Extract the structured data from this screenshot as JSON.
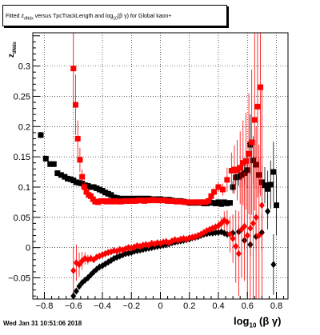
{
  "title": {
    "pre": "Fitted z",
    "sub": "dNdx",
    "mid": " versus TpcTrackLength and log",
    "sub2": "10",
    "post": "(β γ) for Global kaon+"
  },
  "footer": "Wed Jan 31 10:51:06 2018",
  "xlabel": {
    "base": "log",
    "sub": "10",
    "rest": "(β γ)"
  },
  "ylabel": {
    "base": "z",
    "sub": "dNdx"
  },
  "chart_data": {
    "type": "scatter",
    "grid": true,
    "xlim": [
      -0.88,
      0.88
    ],
    "ylim": [
      -0.085,
      0.355
    ],
    "xticks": [
      -0.8,
      -0.6,
      -0.4,
      -0.2,
      0,
      0.2,
      0.4,
      0.6,
      0.8
    ],
    "xtick_labels": [
      "−0.8",
      "−0.6",
      "−0.4",
      "−0.2",
      "0",
      "0.2",
      "0.4",
      "0.6",
      "0.8"
    ],
    "yticks": [
      -0.05,
      0,
      0.05,
      0.1,
      0.15,
      0.2,
      0.25,
      0.3
    ],
    "ytick_labels": [
      "−0.05",
      "0",
      "0.05",
      "0.1",
      "0.15",
      "0.2",
      "0.25",
      "0.3"
    ],
    "series": [
      {
        "color": "#000000",
        "marker": "square",
        "x": [
          -0.825,
          -0.79,
          -0.76,
          -0.735,
          -0.71,
          -0.685,
          -0.66,
          -0.64,
          -0.62,
          -0.6,
          -0.58,
          -0.56,
          -0.54,
          -0.52,
          -0.5,
          -0.48,
          -0.46,
          -0.44,
          -0.42,
          -0.4,
          -0.38,
          -0.36,
          -0.34,
          -0.32,
          -0.3,
          -0.28,
          -0.26,
          -0.24,
          -0.22,
          -0.2,
          -0.18,
          -0.16,
          -0.14,
          -0.12,
          -0.1,
          -0.08,
          -0.06,
          -0.04,
          -0.02,
          0,
          0.02,
          0.04,
          0.06,
          0.08,
          0.1,
          0.12,
          0.14,
          0.16,
          0.18,
          0.2,
          0.22,
          0.24,
          0.26,
          0.28,
          0.3,
          0.32,
          0.34,
          0.36,
          0.38,
          0.4,
          0.42,
          0.44,
          0.46,
          0.48,
          0.5,
          0.52,
          0.54,
          0.56,
          0.58,
          0.6,
          0.62,
          0.64,
          0.66,
          0.68,
          0.7,
          0.72,
          0.74,
          0.76,
          0.78,
          0.8
        ],
        "y": [
          0.186,
          0.147,
          0.138,
          0.138,
          0.123,
          0.12,
          0.117,
          0.114,
          0.113,
          0.111,
          0.108,
          0.107,
          0.106,
          0.103,
          0.102,
          0.1,
          0.1,
          0.098,
          0.096,
          0.094,
          0.091,
          0.089,
          0.087,
          0.083,
          0.082,
          0.081,
          0.081,
          0.081,
          0.081,
          0.081,
          0.081,
          0.081,
          0.081,
          0.081,
          0.081,
          0.081,
          0.08,
          0.08,
          0.08,
          0.08,
          0.079,
          0.079,
          0.079,
          0.078,
          0.077,
          0.077,
          0.077,
          0.076,
          0.075,
          0.074,
          0.074,
          0.074,
          0.074,
          0.075,
          0.073,
          0.073,
          0.075,
          0.074,
          0.073,
          0.075,
          0.072,
          0.075,
          0.073,
          0.074,
          0.1,
          0.116,
          0.117,
          0.12,
          0.123,
          0.128,
          0.17,
          0.144,
          0.137,
          0.12,
          0.108,
          0.103,
          0.097,
          0.104,
          0.125,
          0.07
        ],
        "yerr": [
          0.005,
          0.005,
          0.004,
          0.004,
          0.003,
          0.003,
          0.003,
          0.003,
          0.003,
          0.003,
          0.002,
          0.002,
          0.002,
          0.002,
          0.002,
          0.002,
          0.002,
          0.002,
          0.002,
          0.002,
          0.002,
          0.002,
          0.002,
          0.002,
          0.002,
          0.002,
          0.002,
          0.002,
          0.002,
          0.002,
          0.002,
          0.002,
          0.002,
          0.002,
          0.002,
          0.002,
          0.002,
          0.002,
          0.002,
          0.002,
          0.002,
          0.002,
          0.002,
          0.002,
          0.002,
          0.002,
          0.002,
          0.002,
          0.002,
          0.002,
          0.002,
          0.002,
          0.002,
          0.002,
          0.002,
          0.002,
          0.002,
          0.002,
          0.002,
          0.002,
          0.002,
          0.002,
          0.002,
          0.002,
          0.01,
          0.012,
          0.015,
          0.02,
          0.02,
          0.03,
          0.05,
          0.04,
          0.04,
          0.03,
          0.03,
          0.03,
          0.03,
          0.04,
          0.05,
          0.05
        ]
      },
      {
        "color": "#000000",
        "marker": "diamond",
        "x": [
          -0.6,
          -0.58,
          -0.56,
          -0.54,
          -0.52,
          -0.5,
          -0.48,
          -0.46,
          -0.44,
          -0.42,
          -0.4,
          -0.38,
          -0.36,
          -0.34,
          -0.32,
          -0.3,
          -0.28,
          -0.26,
          -0.24,
          -0.22,
          -0.2,
          -0.18,
          -0.16,
          -0.14,
          -0.12,
          -0.1,
          -0.08,
          -0.06,
          -0.04,
          -0.02,
          0,
          0.02,
          0.04,
          0.06,
          0.08,
          0.1,
          0.12,
          0.14,
          0.16,
          0.18,
          0.2,
          0.22,
          0.24,
          0.26,
          0.28,
          0.3,
          0.32,
          0.34,
          0.36,
          0.38,
          0.4,
          0.42,
          0.44,
          0.46,
          0.5,
          0.54,
          0.58,
          0.62,
          0.66,
          0.7,
          0.74,
          0.78
        ],
        "y": [
          -0.08,
          -0.072,
          -0.064,
          -0.058,
          -0.054,
          -0.05,
          -0.045,
          -0.04,
          -0.036,
          -0.032,
          -0.03,
          -0.027,
          -0.024,
          -0.021,
          -0.018,
          -0.016,
          -0.014,
          -0.012,
          -0.01,
          -0.009,
          -0.008,
          -0.006,
          -0.005,
          -0.004,
          -0.003,
          -0.002,
          -0.001,
          0,
          0.001,
          0.002,
          0.003,
          0.004,
          0.005,
          0.006,
          0.008,
          0.009,
          0.01,
          0.011,
          0.012,
          0.013,
          0.014,
          0.016,
          0.017,
          0.018,
          0.02,
          0.022,
          0.023,
          0.024,
          0.024,
          0.025,
          0.025,
          0.026,
          0.024,
          0.022,
          0.024,
          0.026,
          0.012,
          0.005,
          0.018,
          0.025,
          0.06,
          -0.028
        ],
        "yerr": [
          0.006,
          0.005,
          0.004,
          0.004,
          0.003,
          0.003,
          0.003,
          0.003,
          0.002,
          0.002,
          0.002,
          0.002,
          0.002,
          0.002,
          0.002,
          0.002,
          0.002,
          0.002,
          0.002,
          0.002,
          0.002,
          0.002,
          0.002,
          0.002,
          0.002,
          0.002,
          0.002,
          0.002,
          0.002,
          0.002,
          0.002,
          0.002,
          0.002,
          0.002,
          0.002,
          0.002,
          0.002,
          0.002,
          0.002,
          0.002,
          0.002,
          0.002,
          0.002,
          0.002,
          0.002,
          0.002,
          0.002,
          0.002,
          0.002,
          0.002,
          0.002,
          0.003,
          0.003,
          0.003,
          0.008,
          0.01,
          0.015,
          0.02,
          0.02,
          0.03,
          0.03,
          0.05
        ]
      },
      {
        "color": "#ff0000",
        "marker": "square",
        "x": [
          -0.6,
          -0.585,
          -0.57,
          -0.555,
          -0.54,
          -0.525,
          -0.51,
          -0.495,
          -0.48,
          -0.465,
          -0.45,
          -0.43,
          -0.41,
          -0.39,
          -0.37,
          -0.35,
          -0.33,
          -0.31,
          -0.29,
          -0.27,
          -0.25,
          -0.23,
          -0.21,
          -0.19,
          -0.17,
          -0.15,
          -0.13,
          -0.11,
          -0.09,
          -0.07,
          -0.05,
          -0.03,
          -0.01,
          0.01,
          0.03,
          0.05,
          0.07,
          0.09,
          0.11,
          0.13,
          0.15,
          0.17,
          0.19,
          0.21,
          0.23,
          0.25,
          0.27,
          0.29,
          0.31,
          0.33,
          0.35,
          0.37,
          0.4,
          0.43,
          0.46,
          0.49,
          0.51,
          0.53,
          0.55,
          0.57,
          0.59,
          0.61,
          0.63,
          0.65,
          0.67,
          0.69
        ],
        "y": [
          0.296,
          0.236,
          0.18,
          0.145,
          0.117,
          0.1,
          0.092,
          0.087,
          0.085,
          0.08,
          0.076,
          0.075,
          0.077,
          0.077,
          0.076,
          0.077,
          0.076,
          0.077,
          0.076,
          0.076,
          0.077,
          0.077,
          0.077,
          0.077,
          0.077,
          0.078,
          0.078,
          0.077,
          0.078,
          0.078,
          0.079,
          0.078,
          0.078,
          0.078,
          0.078,
          0.077,
          0.077,
          0.077,
          0.076,
          0.076,
          0.076,
          0.075,
          0.075,
          0.075,
          0.075,
          0.075,
          0.075,
          0.075,
          0.075,
          0.077,
          0.085,
          0.092,
          0.1,
          0.096,
          0.112,
          0.127,
          0.129,
          0.128,
          0.132,
          0.14,
          0.143,
          0.155,
          0.174,
          0.211,
          0.233,
          0.265
        ],
        "yerr": [
          0.06,
          0.05,
          0.03,
          0.02,
          0.012,
          0.008,
          0.005,
          0.004,
          0.003,
          0.003,
          0.002,
          0.002,
          0.002,
          0.002,
          0.002,
          0.002,
          0.002,
          0.002,
          0.002,
          0.002,
          0.002,
          0.002,
          0.002,
          0.002,
          0.002,
          0.002,
          0.002,
          0.002,
          0.002,
          0.002,
          0.002,
          0.002,
          0.002,
          0.002,
          0.002,
          0.002,
          0.002,
          0.002,
          0.002,
          0.002,
          0.002,
          0.002,
          0.002,
          0.002,
          0.002,
          0.002,
          0.002,
          0.002,
          0.002,
          0.003,
          0.005,
          0.006,
          0.008,
          0.01,
          0.02,
          0.03,
          0.04,
          0.05,
          0.06,
          0.07,
          0.08,
          0.1,
          0.12,
          0.15,
          0.15,
          0.18
        ]
      },
      {
        "color": "#ff0000",
        "marker": "diamond",
        "x": [
          -0.6,
          -0.58,
          -0.56,
          -0.54,
          -0.52,
          -0.5,
          -0.48,
          -0.46,
          -0.44,
          -0.42,
          -0.4,
          -0.38,
          -0.36,
          -0.34,
          -0.32,
          -0.3,
          -0.28,
          -0.26,
          -0.24,
          -0.22,
          -0.2,
          -0.18,
          -0.16,
          -0.14,
          -0.12,
          -0.1,
          -0.08,
          -0.06,
          -0.04,
          -0.02,
          0,
          0.02,
          0.04,
          0.06,
          0.08,
          0.1,
          0.12,
          0.14,
          0.16,
          0.18,
          0.2,
          0.22,
          0.24,
          0.26,
          0.28,
          0.3,
          0.32,
          0.34,
          0.36,
          0.38,
          0.4,
          0.42,
          0.44,
          0.46,
          0.48,
          0.5,
          0.52,
          0.54,
          0.56,
          0.58,
          0.6,
          0.62,
          0.64,
          0.66,
          0.68,
          0.7
        ],
        "y": [
          -0.038,
          -0.025,
          -0.028,
          -0.022,
          -0.018,
          -0.02,
          -0.018,
          -0.02,
          -0.016,
          -0.014,
          -0.012,
          -0.01,
          -0.008,
          -0.007,
          -0.005,
          -0.006,
          -0.003,
          -0.004,
          -0.002,
          0,
          -0.001,
          0.001,
          0.003,
          0.002,
          0.004,
          0.005,
          0.004,
          0.007,
          0.006,
          0.008,
          0.007,
          0.009,
          0.01,
          0.008,
          0.011,
          0.013,
          0.012,
          0.014,
          0.015,
          0.014,
          0.016,
          0.017,
          0.018,
          0.02,
          0.022,
          0.025,
          0.028,
          0.03,
          0.032,
          0.034,
          0.036,
          0.04,
          0.045,
          0.042,
          0.022,
          0.015,
          0.002,
          -0.01,
          0.03,
          0.035,
          0.02,
          0.032,
          0.04,
          0.05,
          0.02,
          0.07
        ],
        "yerr": [
          0.04,
          0.03,
          0.02,
          0.015,
          0.01,
          0.008,
          0.006,
          0.005,
          0.004,
          0.003,
          0.003,
          0.002,
          0.002,
          0.002,
          0.002,
          0.002,
          0.002,
          0.002,
          0.002,
          0.002,
          0.002,
          0.002,
          0.002,
          0.002,
          0.002,
          0.002,
          0.002,
          0.002,
          0.002,
          0.002,
          0.002,
          0.002,
          0.002,
          0.002,
          0.002,
          0.002,
          0.002,
          0.002,
          0.002,
          0.002,
          0.002,
          0.002,
          0.002,
          0.002,
          0.002,
          0.003,
          0.003,
          0.004,
          0.005,
          0.006,
          0.008,
          0.01,
          0.015,
          0.02,
          0.03,
          0.04,
          0.06,
          0.07,
          0.08,
          0.09,
          0.1,
          0.12,
          0.13,
          0.15,
          0.15,
          0.2
        ]
      }
    ]
  }
}
